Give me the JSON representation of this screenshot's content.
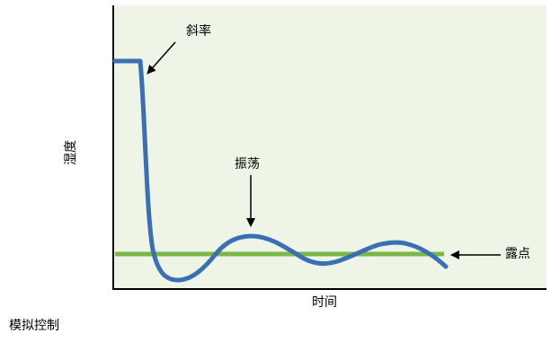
{
  "diagram": {
    "caption": "模拟控制",
    "y_axis_label": "湿度",
    "x_axis_label": "时间",
    "annotations": {
      "slope": "斜率",
      "oscillation": "振荡",
      "dew_point": "露点"
    },
    "colors": {
      "plot_background": "#eef5e6",
      "axis": "#000000",
      "response_curve": "#3b6fb3",
      "setpoint_line": "#7ab648",
      "arrow": "#000000"
    }
  }
}
